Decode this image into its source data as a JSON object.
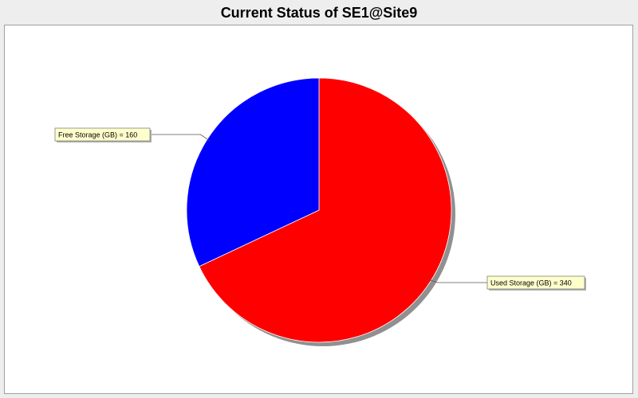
{
  "chart_data": {
    "type": "pie",
    "title": "Current Status of SE1@Site9",
    "slices": [
      {
        "name": "Used Storage (GB)",
        "value": 340,
        "color": "#ff0000",
        "label": "Used Storage (GB) = 340"
      },
      {
        "name": "Free Storage (GB)",
        "value": 160,
        "color": "#0000ff",
        "label": "Free Storage (GB) = 160"
      }
    ],
    "start_angle_deg": 90,
    "direction": "clockwise",
    "colors": {
      "label_background": "#ffffcc",
      "shadow": "#909090",
      "background": "#eeeeee",
      "plot_background": "#ffffff"
    }
  }
}
